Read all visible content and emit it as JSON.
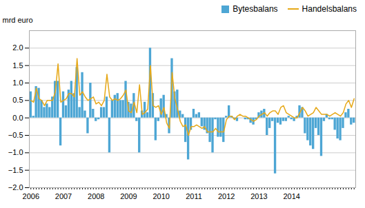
{
  "chart_data": {
    "type": "bar",
    "ylabel": "mrd euro",
    "categories": [
      "2006",
      null,
      null,
      null,
      null,
      null,
      null,
      null,
      null,
      null,
      null,
      null,
      "2007",
      null,
      null,
      null,
      null,
      null,
      null,
      null,
      null,
      null,
      null,
      null,
      "2008",
      null,
      null,
      null,
      null,
      null,
      null,
      null,
      null,
      null,
      null,
      null,
      "2009",
      null,
      null,
      null,
      null,
      null,
      null,
      null,
      null,
      null,
      null,
      null,
      "2010",
      null,
      null,
      null,
      null,
      null,
      null,
      null,
      null,
      null,
      null,
      null,
      "2011",
      null,
      null,
      null,
      null,
      null,
      null,
      null,
      null,
      null,
      null,
      null,
      "2012",
      null,
      null,
      null,
      null,
      null,
      null,
      null,
      null,
      null,
      null,
      null,
      "2013",
      null,
      null,
      null,
      null,
      null,
      null,
      null,
      null,
      null,
      null,
      null,
      "2014",
      null,
      null,
      null,
      null,
      null,
      null,
      null,
      null,
      null,
      null,
      null,
      null,
      null,
      null,
      null,
      null,
      null,
      null,
      null,
      null,
      null,
      null,
      null
    ],
    "series": [
      {
        "name": "Bytesbalans",
        "type": "bar",
        "color": "#4da6d4",
        "values": [
          0.75,
          0.05,
          0.9,
          0.85,
          0.5,
          0.3,
          0.4,
          0.3,
          0.6,
          1.05,
          1.05,
          -0.8,
          0.75,
          0.35,
          0.8,
          1.05,
          0.7,
          1.45,
          0.3,
          1.3,
          0.2,
          -0.45,
          1.0,
          0.25,
          -0.1,
          -0.05,
          0.3,
          0.3,
          0.6,
          -1.0,
          0.5,
          0.65,
          0.7,
          0.5,
          0.5,
          1.05,
          0.45,
          0.4,
          0.7,
          -0.1,
          -1.0,
          0.2,
          0.45,
          0.15,
          2.0,
          0.7,
          -0.65,
          -0.1,
          0.55,
          0.65,
          0.1,
          -0.45,
          1.7,
          0.75,
          0.8,
          0.2,
          0.1,
          -0.7,
          -1.2,
          -0.35,
          0.25,
          0.1,
          0.15,
          -0.25,
          -0.35,
          -0.45,
          -0.7,
          -1.0,
          -0.05,
          -0.55,
          -0.55,
          -0.7,
          0.05,
          0.35,
          0.05,
          -0.05,
          -0.1,
          0.0,
          0.0,
          -0.05,
          -0.05,
          -0.15,
          -0.2,
          -0.05,
          0.15,
          0.2,
          0.25,
          -0.5,
          -0.3,
          -0.1,
          -1.6,
          -0.15,
          -0.2,
          -0.1,
          -0.1,
          0.05,
          -0.05,
          -0.1,
          0.05,
          0.35,
          0.3,
          -0.45,
          -0.65,
          -0.8,
          -0.9,
          -0.3,
          -0.5,
          -1.1,
          -0.1,
          0.1,
          -0.05,
          -0.05,
          -0.35,
          -0.6,
          -0.65,
          -0.3,
          0.15,
          0.25,
          -0.2,
          -0.15
        ]
      },
      {
        "name": "Handelsbalans",
        "type": "line",
        "color": "#e6a817",
        "values": [
          0.5,
          0.45,
          0.85,
          0.55,
          0.5,
          0.35,
          0.5,
          0.5,
          0.5,
          0.75,
          1.55,
          0.45,
          0.5,
          0.55,
          0.7,
          0.7,
          0.6,
          1.7,
          0.65,
          0.75,
          0.6,
          0.5,
          0.55,
          0.6,
          0.4,
          0.45,
          0.35,
          0.5,
          1.25,
          0.6,
          0.5,
          0.55,
          0.5,
          0.55,
          0.65,
          0.8,
          0.2,
          0.15,
          0.45,
          0.15,
          0.95,
          0.1,
          0.15,
          0.25,
          1.5,
          0.35,
          0.3,
          0.35,
          0.1,
          0.3,
          -0.15,
          -0.3,
          1.3,
          0.55,
          0.25,
          -0.1,
          -0.25,
          -0.2,
          -0.5,
          -0.25,
          -0.25,
          -0.2,
          -0.25,
          -0.3,
          -0.25,
          -0.4,
          -0.4,
          -0.4,
          -0.3,
          -0.4,
          -0.4,
          -0.4,
          -0.05,
          0.05,
          0.05,
          -0.05,
          0.05,
          0.1,
          0.05,
          0.05,
          0.0,
          -0.05,
          -0.1,
          -0.05,
          0.05,
          0.1,
          0.15,
          0.05,
          0.15,
          0.2,
          0.2,
          0.1,
          0.3,
          0.35,
          0.15,
          0.1,
          0.05,
          0.0,
          0.0,
          0.15,
          0.3,
          0.2,
          0.05,
          0.1,
          0.15,
          0.3,
          0.2,
          0.1,
          0.1,
          0.1,
          0.05,
          0.1,
          0.15,
          0.1,
          0.05,
          0.15,
          0.4,
          0.5,
          0.3,
          0.55
        ]
      }
    ],
    "ylim": [
      -2.0,
      2.5
    ],
    "yticks": [
      {
        "value": -2.0,
        "label": "−2.0"
      },
      -1.5,
      {
        "value": -1.0,
        "label": "−1.0"
      },
      -0.5,
      {
        "value": 0.0,
        "label": "0.0"
      },
      0.5,
      {
        "value": 1.0,
        "label": "1.0"
      },
      1.5,
      {
        "value": 2.0,
        "label": "2.0"
      }
    ],
    "grid": true,
    "legend": "upper right"
  }
}
